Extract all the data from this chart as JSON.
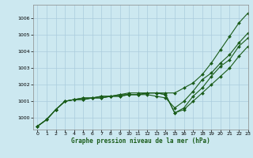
{
  "title": "Graphe pression niveau de la mer (hPa)",
  "bg_color": "#cce8f0",
  "grid_color": "#aaccdd",
  "line_color": "#1a5c1a",
  "xlim": [
    -0.5,
    23
  ],
  "ylim": [
    999.3,
    1006.8
  ],
  "yticks": [
    1000,
    1001,
    1002,
    1003,
    1004,
    1005,
    1006
  ],
  "xticks": [
    0,
    1,
    2,
    3,
    4,
    5,
    6,
    7,
    8,
    9,
    10,
    11,
    12,
    13,
    14,
    15,
    16,
    17,
    18,
    19,
    20,
    21,
    22,
    23
  ],
  "hours": [
    0,
    1,
    2,
    3,
    4,
    5,
    6,
    7,
    8,
    9,
    10,
    11,
    12,
    13,
    14,
    15,
    16,
    17,
    18,
    19,
    20,
    21,
    22,
    23
  ],
  "line1": [
    999.5,
    999.9,
    1000.5,
    1001.0,
    1001.1,
    1001.2,
    1001.2,
    1001.3,
    1001.3,
    1001.4,
    1001.5,
    1001.5,
    1001.5,
    1001.5,
    1001.5,
    1001.5,
    1001.8,
    1002.1,
    1002.6,
    1003.3,
    1004.1,
    1004.9,
    1005.7,
    1006.3
  ],
  "line2": [
    999.5,
    999.9,
    1000.5,
    1001.0,
    1001.1,
    1001.2,
    1001.2,
    1001.3,
    1001.3,
    1001.4,
    1001.4,
    1001.4,
    1001.4,
    1001.3,
    1001.2,
    1000.6,
    1001.0,
    1001.6,
    1002.3,
    1002.7,
    1003.3,
    1003.8,
    1004.5,
    1005.1
  ],
  "line3": [
    999.5,
    999.9,
    1000.5,
    1001.0,
    1001.1,
    1001.1,
    1001.2,
    1001.2,
    1001.3,
    1001.3,
    1001.4,
    1001.4,
    1001.5,
    1001.5,
    1001.4,
    1000.3,
    1000.6,
    1001.3,
    1001.8,
    1002.5,
    1003.1,
    1003.5,
    1004.3,
    1004.8
  ],
  "line4": [
    999.5,
    999.9,
    1000.5,
    1001.0,
    1001.1,
    1001.1,
    1001.2,
    1001.2,
    1001.3,
    1001.3,
    1001.4,
    1001.4,
    1001.5,
    1001.5,
    1001.4,
    1000.3,
    1000.5,
    1001.0,
    1001.5,
    1002.0,
    1002.5,
    1003.0,
    1003.7,
    1004.3
  ]
}
